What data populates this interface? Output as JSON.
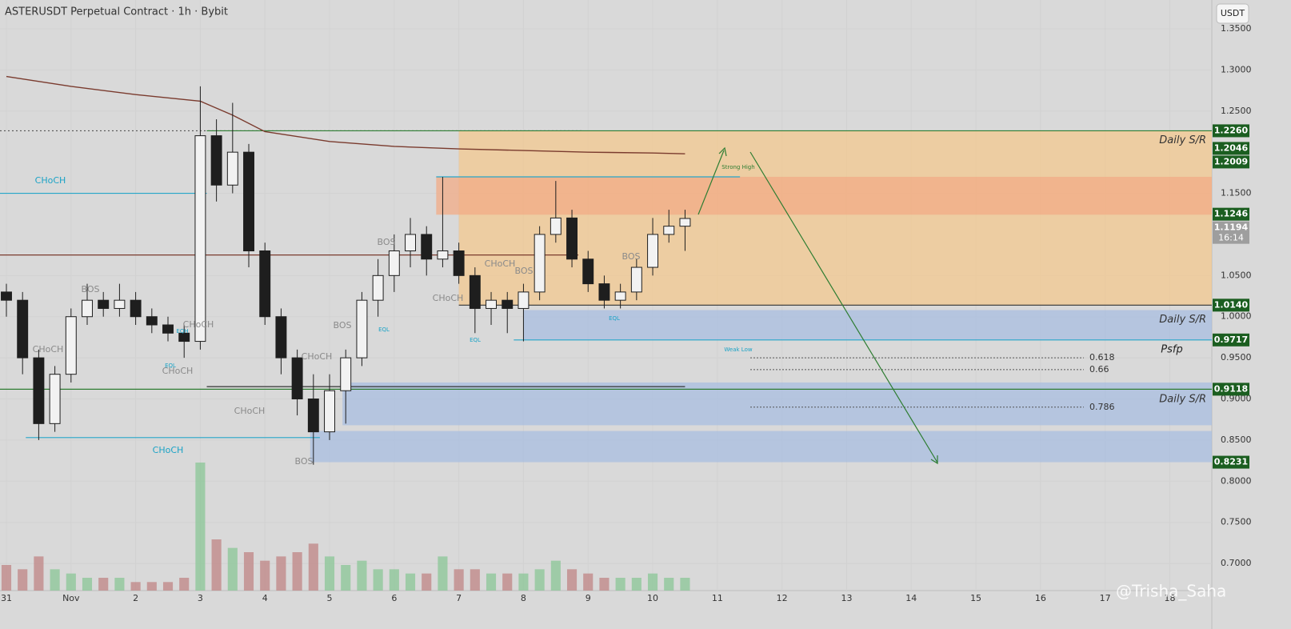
{
  "chart_data": {
    "type": "candlestick",
    "title": "ASTERUSDT Perpetual Contract · 1h · Bybit",
    "currency_button": "USDT",
    "watermark": "@Trisha_Saha",
    "xlim": [
      -0.099,
      18.65
    ],
    "ylim": [
      0.667,
      1.385
    ],
    "xticks": [
      {
        "value": 0,
        "label": "31"
      },
      {
        "value": 1,
        "label": "Nov"
      },
      2,
      3,
      4,
      5,
      6,
      7,
      8,
      9,
      10,
      11,
      12,
      13,
      14,
      15,
      16,
      17,
      18
    ],
    "yticks": [
      {
        "value": 1.35,
        "label": "1.3500"
      },
      {
        "value": 1.3,
        "label": "1.3000"
      },
      {
        "value": 1.25,
        "label": "1.2500"
      },
      {
        "value": 1.15,
        "label": "1.1500"
      },
      {
        "value": 1.05,
        "label": "1.0500"
      },
      {
        "value": 1,
        "label": "1.0000"
      },
      {
        "value": 0.95,
        "label": "0.9500"
      },
      {
        "value": 0.9,
        "label": "0.9000"
      },
      {
        "value": 0.85,
        "label": "0.8500"
      },
      {
        "value": 0.8,
        "label": "0.8000"
      },
      {
        "value": 0.75,
        "label": "0.7500"
      },
      {
        "value": 0.7,
        "label": "0.7000"
      }
    ],
    "up_color": "#f2f2f2",
    "down_color": "#1e1e1e",
    "x": [
      0,
      0.25,
      0.5,
      0.75,
      1,
      1.25,
      1.5,
      1.75,
      2,
      2.25,
      2.5,
      2.75,
      3,
      3.25,
      3.5,
      3.75,
      4,
      4.25,
      4.5,
      4.75,
      5,
      5.25,
      5.5,
      5.75,
      6,
      6.25,
      6.5,
      6.75,
      7,
      7.25,
      7.5,
      7.75,
      8,
      8.25,
      8.5,
      8.75,
      9,
      9.25,
      9.5,
      9.75,
      10,
      10.25,
      10.5
    ],
    "open": [
      1.03,
      1.02,
      0.95,
      0.87,
      0.93,
      1.0,
      1.02,
      1.01,
      1.02,
      1.0,
      0.99,
      0.98,
      0.97,
      1.22,
      1.16,
      1.2,
      1.08,
      1.0,
      0.95,
      0.9,
      0.86,
      0.91,
      0.95,
      1.02,
      1.05,
      1.08,
      1.1,
      1.07,
      1.08,
      1.05,
      1.01,
      1.02,
      1.01,
      1.03,
      1.1,
      1.12,
      1.07,
      1.04,
      1.02,
      1.03,
      1.06,
      1.1,
      1.11
    ],
    "high": [
      1.04,
      1.03,
      0.96,
      0.94,
      1.01,
      1.04,
      1.03,
      1.04,
      1.03,
      1.01,
      1.0,
      0.99,
      1.28,
      1.24,
      1.26,
      1.21,
      1.09,
      1.01,
      0.96,
      0.93,
      0.93,
      0.96,
      1.03,
      1.07,
      1.1,
      1.12,
      1.11,
      1.17,
      1.09,
      1.06,
      1.03,
      1.03,
      1.04,
      1.11,
      1.165,
      1.13,
      1.08,
      1.05,
      1.04,
      1.07,
      1.12,
      1.13,
      1.13
    ],
    "low": [
      1.0,
      0.93,
      0.85,
      0.86,
      0.92,
      0.99,
      1.0,
      1.0,
      0.99,
      0.98,
      0.97,
      0.95,
      0.96,
      1.14,
      1.15,
      1.06,
      0.99,
      0.93,
      0.88,
      0.82,
      0.85,
      0.87,
      0.94,
      1.0,
      1.03,
      1.06,
      1.05,
      1.06,
      1.04,
      0.98,
      0.99,
      0.98,
      0.97,
      1.02,
      1.09,
      1.06,
      1.03,
      1.01,
      1.01,
      1.02,
      1.05,
      1.09,
      1.08
    ],
    "close": [
      1.02,
      0.95,
      0.87,
      0.93,
      1.0,
      1.02,
      1.01,
      1.02,
      1.0,
      0.99,
      0.98,
      0.97,
      1.22,
      1.16,
      1.2,
      1.08,
      1.0,
      0.95,
      0.9,
      0.86,
      0.91,
      0.95,
      1.02,
      1.05,
      1.08,
      1.1,
      1.07,
      1.08,
      1.05,
      1.01,
      1.02,
      1.01,
      1.03,
      1.1,
      1.12,
      1.07,
      1.04,
      1.02,
      1.03,
      1.06,
      1.1,
      1.11,
      1.1194
    ],
    "volume": [
      6,
      5,
      8,
      5,
      4,
      3,
      3,
      3,
      2,
      2,
      2,
      3,
      30,
      12,
      10,
      9,
      7,
      8,
      9,
      11,
      8,
      6,
      7,
      5,
      5,
      4,
      4,
      8,
      5,
      5,
      4,
      4,
      4,
      5,
      7,
      5,
      4,
      3,
      3,
      3,
      4,
      3,
      3
    ],
    "moving_average": {
      "color": "#7a3b2e",
      "x": [
        0,
        1,
        2,
        3,
        3.5,
        4,
        5,
        6,
        7,
        8,
        9,
        10,
        10.5
      ],
      "values": [
        1.292,
        1.28,
        1.27,
        1.262,
        1.245,
        1.225,
        1.213,
        1.207,
        1.204,
        1.202,
        1.2,
        1.199,
        1.198
      ]
    },
    "zones": [
      {
        "from": 7,
        "low": 1.014,
        "high": 1.226,
        "color": "#f3c88f",
        "label": "Daily S/R"
      },
      {
        "from": 6.65,
        "low": 1.124,
        "high": 1.17,
        "color": "#f1ab86"
      },
      {
        "from": 8,
        "low": 0.9717,
        "high": 1.008,
        "color": "#a8bde0",
        "label": "Daily S/R"
      },
      {
        "from": 5.2,
        "low": 0.868,
        "high": 0.92,
        "color": "#a8bde0",
        "label": "Daily S/R"
      },
      {
        "from": 4.7,
        "low": 0.8231,
        "high": 0.861,
        "color": "#a8bde0"
      }
    ],
    "levels": [
      {
        "value": 1.226,
        "from": -0.099,
        "to": 8.9,
        "color": "#555555",
        "dash": true
      },
      {
        "value": 1.226,
        "from": 3.1,
        "to": 18.65,
        "color": "#2e7d32",
        "dash": false
      },
      {
        "value": 1.15,
        "from": -0.099,
        "to": 3.1,
        "color": "#26a6c9",
        "dash": false
      },
      {
        "value": 1.17,
        "from": 6.65,
        "to": 11.35,
        "color": "#26a6c9",
        "dash": false
      },
      {
        "value": 1.075,
        "from": -0.099,
        "to": 8.85,
        "color": "#7a3b2e",
        "dash": false
      },
      {
        "value": 1.014,
        "from": 7,
        "to": 18.65,
        "color": "#333333",
        "dash": false
      },
      {
        "value": 0.9717,
        "from": 7.85,
        "to": 18.65,
        "color": "#26a6c9",
        "dash": false
      },
      {
        "value": 0.915,
        "from": 3.1,
        "to": 10.5,
        "color": "#333333",
        "dash": false
      },
      {
        "value": 0.9118,
        "from": -0.099,
        "to": 18.65,
        "color": "#2e7d32",
        "dash": false
      },
      {
        "value": 0.853,
        "from": 0.3,
        "to": 4.85,
        "color": "#26a6c9",
        "dash": false
      }
    ],
    "fib_levels": [
      {
        "label": "0.618",
        "price": 0.95
      },
      {
        "label": "0.66",
        "price": 0.9356
      },
      {
        "label": "0.786",
        "price": 0.89
      }
    ],
    "price_labels": [
      {
        "value": 1.226,
        "label": "1.2260",
        "color": "#1b5e20"
      },
      {
        "value": 1.2046,
        "label": "1.2046",
        "color": "#1b5e20"
      },
      {
        "value": 1.2009,
        "label": "1.2009",
        "color": "#1b5e20"
      },
      {
        "value": 1.1246,
        "label": "1.1246",
        "color": "#1b5e20"
      },
      {
        "value": 1.1194,
        "label": "1.1194",
        "sublabel": "16:14",
        "color": "#9e9e9e"
      },
      {
        "value": 1.014,
        "label": "1.0140",
        "color": "#1b5e20"
      },
      {
        "value": 0.9717,
        "label": "0.9717",
        "color": "#1b5e20"
      },
      {
        "value": 0.9118,
        "label": "0.9118",
        "color": "#1b5e20"
      },
      {
        "value": 0.8231,
        "label": "0.8231",
        "color": "#1b5e20"
      }
    ],
    "annotations": [
      {
        "text": "CHoCH",
        "color": "#1ba3c6"
      },
      {
        "text": "BOS",
        "color": "#8a8a8a"
      },
      {
        "text": "CHoCH",
        "color": "#8a8a8a"
      },
      {
        "text": "EQH",
        "color": "#1ba3c6"
      },
      {
        "text": "CHoCH",
        "color": "#8a8a8a"
      },
      {
        "text": "EQL",
        "color": "#1ba3c6"
      },
      {
        "text": "CHoCH",
        "color": "#8a8a8a"
      },
      {
        "text": "BOS",
        "color": "#8a8a8a"
      },
      {
        "text": "CHoCH",
        "color": "#8a8a8a"
      },
      {
        "text": "BOS",
        "color": "#8a8a8a"
      },
      {
        "text": "EQL",
        "color": "#1ba3c6"
      },
      {
        "text": "CHoCH",
        "color": "#8a8a8a"
      },
      {
        "text": "CHoCH",
        "color": "#1ba3c6"
      },
      {
        "text": "BOS",
        "color": "#8a8a8a"
      },
      {
        "text": "CHoCH",
        "color": "#8a8a8a"
      },
      {
        "text": "CHoCH",
        "color": "#8a8a8a"
      },
      {
        "text": "BOS",
        "color": "#8a8a8a"
      },
      {
        "text": "EQL",
        "color": "#1ba3c6"
      },
      {
        "text": "EQL",
        "color": "#1ba3c6"
      },
      {
        "text": "BOS",
        "color": "#8a8a8a"
      },
      {
        "text": "Strong High",
        "color": "#2e7d32"
      },
      {
        "text": "Weak Low",
        "color": "#1ba3c6"
      },
      {
        "text": "Psfp",
        "color": "#222222"
      }
    ]
  }
}
